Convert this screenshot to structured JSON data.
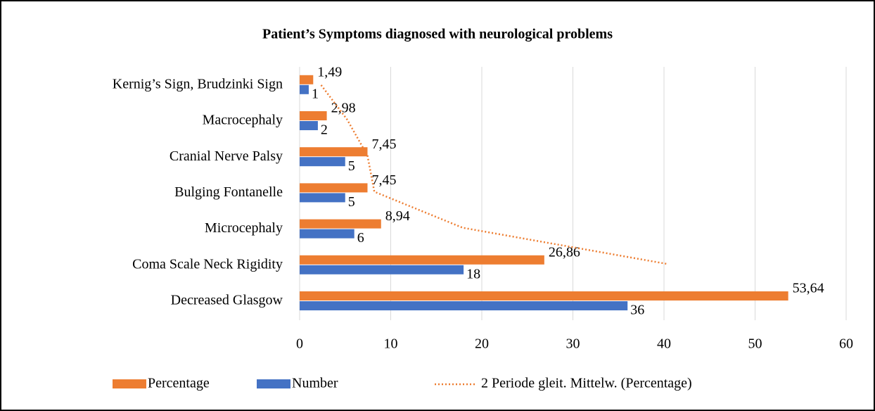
{
  "chart_data": {
    "type": "bar",
    "orientation": "horizontal",
    "title": "Patient’s Symptoms diagnosed with neurological problems",
    "categories": [
      "Decreased Glasgow",
      "Coma Scale Neck Rigidity",
      "Microcephaly",
      "Bulging Fontanelle",
      "Cranial Nerve Palsy",
      "Macrocephaly",
      "Kernig’s Sign,   Brudzinki Sign"
    ],
    "series": [
      {
        "name": "Percentage",
        "color": "#ed7d31",
        "values": [
          53.64,
          26.86,
          8.94,
          7.45,
          7.45,
          2.98,
          1.49
        ],
        "value_labels": [
          "53,64",
          "26,86",
          "8,94",
          "7,45",
          "7,45",
          "2,98",
          "1,49"
        ]
      },
      {
        "name": "Number",
        "color": "#4472c4",
        "values": [
          36,
          18,
          6,
          5,
          5,
          2,
          1
        ]
      },
      {
        "name": "2 Periode gleit. Mittelw. (Percentage)",
        "color": "#ed7d31",
        "type": "line",
        "style": "dotted",
        "values": [
          null,
          40.25,
          17.9,
          8.2,
          7.45,
          5.22,
          2.24
        ]
      }
    ],
    "xlim": [
      0,
      60
    ],
    "xticks": [
      0,
      10,
      20,
      30,
      40,
      50,
      60
    ],
    "grid": true,
    "legend": "bottom"
  }
}
